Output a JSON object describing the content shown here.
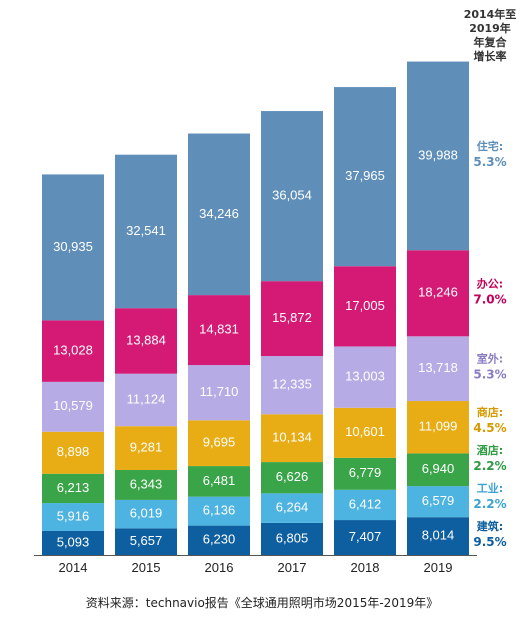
{
  "chart_data": {
    "type": "bar",
    "stacked": true,
    "categories": [
      "2014",
      "2015",
      "2016",
      "2017",
      "2018",
      "2019"
    ],
    "series": [
      {
        "name": "建筑",
        "color": "#0e5fa0",
        "label_color": "#ffffff",
        "cagr": "9.5%",
        "values": [
          5093,
          5657,
          6230,
          6805,
          7407,
          8014
        ],
        "labels": [
          "5,093",
          "5,657",
          "6,230",
          "6,805",
          "7,407",
          "8,014"
        ]
      },
      {
        "name": "工业",
        "color": "#4db3e0",
        "label_color": "#ffffff",
        "cagr": "2.2%",
        "values": [
          5916,
          6019,
          6136,
          6264,
          6412,
          6579
        ],
        "labels": [
          "5,916",
          "6,019",
          "6,136",
          "6,264",
          "6,412",
          "6,579"
        ]
      },
      {
        "name": "酒店",
        "color": "#3aa449",
        "label_color": "#ffffff",
        "cagr": "2.2%",
        "values": [
          6213,
          6343,
          6481,
          6626,
          6779,
          6940
        ],
        "labels": [
          "6,213",
          "6,343",
          "6,481",
          "6,626",
          "6,779",
          "6,940"
        ]
      },
      {
        "name": "商店",
        "color": "#e8ac14",
        "label_color": "#ffffff",
        "cagr": "4.5%",
        "values": [
          8898,
          9281,
          9695,
          10134,
          10601,
          11099
        ],
        "labels": [
          "8,898",
          "9,281",
          "9,695",
          "10,134",
          "10,601",
          "11,099"
        ]
      },
      {
        "name": "室外",
        "color": "#b7abe6",
        "label_color": "#ffffff",
        "cagr": "5.3%",
        "values": [
          10579,
          11124,
          11710,
          12335,
          13003,
          13718
        ],
        "labels": [
          "10,579",
          "11,124",
          "11,710",
          "12,335",
          "13,003",
          "13,718"
        ]
      },
      {
        "name": "办公",
        "color": "#d41a74",
        "label_color": "#ffffff",
        "cagr": "7.0%",
        "values": [
          13028,
          13884,
          14831,
          15872,
          17005,
          18246
        ],
        "labels": [
          "13,028",
          "13,884",
          "14,831",
          "15,872",
          "17,005",
          "18,246"
        ]
      },
      {
        "name": "住宅",
        "color": "#5f8fb9",
        "label_color": "#ffffff",
        "cagr": "5.3%",
        "values": [
          30935,
          32541,
          34246,
          36054,
          37965,
          39988
        ],
        "labels": [
          "30,935",
          "32,541",
          "34,246",
          "36,054",
          "37,965",
          "39,988"
        ]
      }
    ],
    "legend_header": [
      "2014年至",
      "2019年",
      "年复合",
      "增长率"
    ],
    "legend_text_colors": {
      "住宅": "#5f8fb9",
      "办公": "#c2005a",
      "室外": "#8a7cc4",
      "商店": "#d49a00",
      "酒店": "#2e9a43",
      "工业": "#3aa3d3",
      "建筑": "#0e5fa0"
    },
    "legend_placement": "right",
    "grid": false,
    "ylim": [
      0,
      110000
    ]
  },
  "source": "资料来源：technavio报告《全球通用照明市场2015年-2019年》"
}
